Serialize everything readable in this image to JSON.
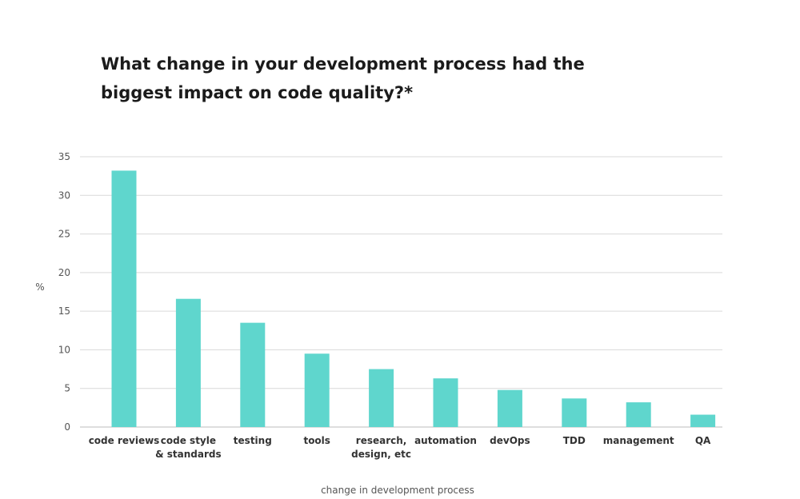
{
  "chart_data": {
    "type": "bar",
    "title": "What change in your development process had the biggest impact on code quality?*",
    "xlabel": "change in development process",
    "ylabel": "%",
    "ylim": [
      0,
      35
    ],
    "yticks": [
      0,
      5,
      10,
      15,
      20,
      25,
      30,
      35
    ],
    "grid": true,
    "categories": [
      [
        "code reviews"
      ],
      [
        "code style",
        "& standards"
      ],
      [
        "testing"
      ],
      [
        "tools"
      ],
      [
        "research,",
        "design, etc"
      ],
      [
        "automation"
      ],
      [
        "devOps"
      ],
      [
        "TDD"
      ],
      [
        "management"
      ],
      [
        "QA"
      ]
    ],
    "values": [
      33.2,
      16.6,
      13.5,
      9.5,
      7.5,
      6.3,
      4.8,
      3.7,
      3.2,
      1.6
    ],
    "bar_color": "#5fd6cd",
    "grid_color": "#d9d9d9",
    "axis_color": "#bdbdbd"
  }
}
